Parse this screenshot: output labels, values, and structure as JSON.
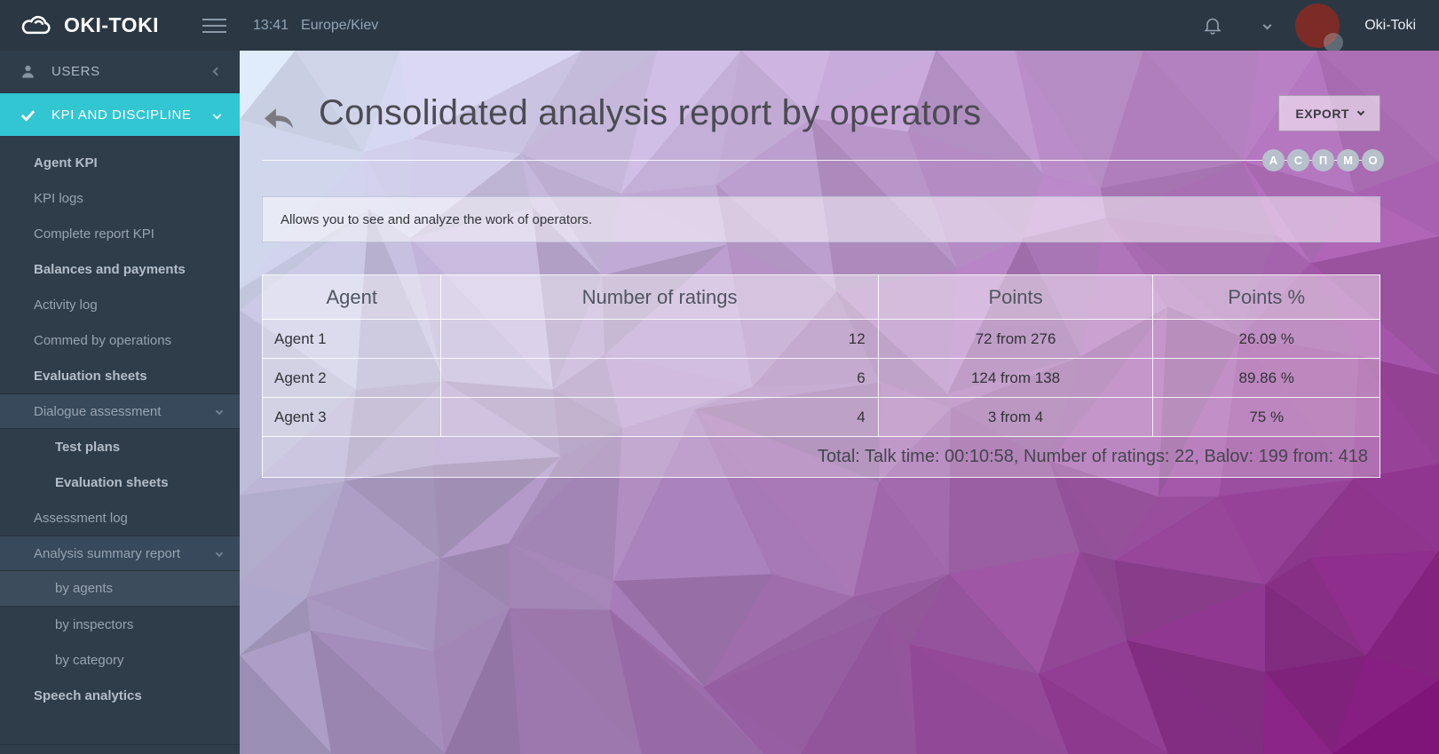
{
  "topbar": {
    "brand": "OKI-TOKI",
    "time": "13:41",
    "timezone": "Europe/Kiev",
    "username": "Oki-Toki"
  },
  "sidebar": {
    "sections": [
      {
        "label": "USERS",
        "icon": "user-icon",
        "chevron": "left",
        "active": false
      },
      {
        "label": "KPI AND DISCIPLINE",
        "icon": "check-icon",
        "chevron": "down",
        "active": true
      }
    ],
    "items": [
      {
        "label": "Agent KPI",
        "bold": true,
        "level": 1
      },
      {
        "label": "KPI logs",
        "bold": false,
        "level": 1
      },
      {
        "label": "Complete report KPI",
        "bold": false,
        "level": 1
      },
      {
        "label": "Balances and payments",
        "bold": true,
        "level": 1
      },
      {
        "label": "Activity log",
        "bold": false,
        "level": 1
      },
      {
        "label": "Commed by operations",
        "bold": false,
        "level": 1
      },
      {
        "label": "Evaluation sheets",
        "bold": true,
        "level": 1
      },
      {
        "label": "Dialogue assessment",
        "bold": false,
        "level": 1,
        "chevron": true,
        "highlight": true
      },
      {
        "label": "Test plans",
        "bold": true,
        "level": 2
      },
      {
        "label": "Evaluation sheets",
        "bold": true,
        "level": 2
      },
      {
        "label": "Assessment log",
        "bold": false,
        "level": 1
      },
      {
        "label": "Analysis summary report",
        "bold": false,
        "level": 1,
        "chevron": true,
        "highlight": true
      },
      {
        "label": "by agents",
        "bold": false,
        "level": 2,
        "selected": true
      },
      {
        "label": "by inspectors",
        "bold": false,
        "level": 2
      },
      {
        "label": "by category",
        "bold": false,
        "level": 2
      },
      {
        "label": "Speech analytics",
        "bold": true,
        "level": 1
      }
    ]
  },
  "main": {
    "title": "Consolidated analysis report by operators",
    "export_label": "EXPORT",
    "badges": [
      "А",
      "С",
      "П",
      "М",
      "О"
    ],
    "info": "Allows you to see and analyze the work of operators.",
    "table": {
      "columns": [
        "Agent",
        "Number of ratings",
        "Points",
        "Points %"
      ],
      "rows": [
        [
          "Agent 1",
          "12",
          "72 from 276",
          "26.09 %"
        ],
        [
          "Agent 2",
          "6",
          "124 from 138",
          "89.86 %"
        ],
        [
          "Agent 3",
          "4",
          "3 from 4",
          "75 %"
        ]
      ],
      "total": "Total: Talk time: 00:10:58, Number of ratings: 22, Balov: 199 from: 418"
    }
  },
  "theme": {
    "accent_cyan": "#32c5d2",
    "topbar_bg": "#2b3844",
    "sidebar_bg": "#2f3d4b",
    "avatar_color": "#7c2b27",
    "badge_bg": "#b7c0cb",
    "background_corners": [
      "#d6e3f1",
      "#b273bd",
      "#9e92b9",
      "#7d0e74"
    ]
  }
}
